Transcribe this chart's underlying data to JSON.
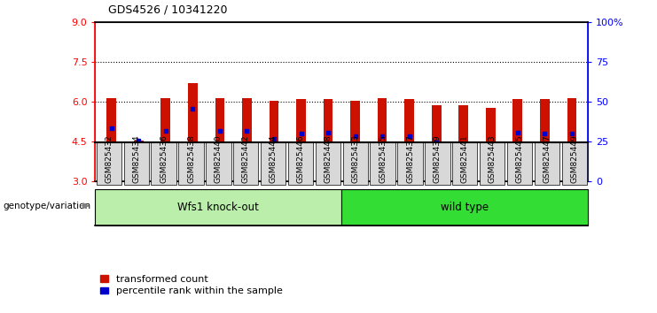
{
  "title": "GDS4526 / 10341220",
  "samples": [
    "GSM825432",
    "GSM825434",
    "GSM825436",
    "GSM825438",
    "GSM825440",
    "GSM825442",
    "GSM825444",
    "GSM825446",
    "GSM825448",
    "GSM825433",
    "GSM825435",
    "GSM825437",
    "GSM825439",
    "GSM825441",
    "GSM825443",
    "GSM825445",
    "GSM825447",
    "GSM825449"
  ],
  "bar_heights": [
    6.15,
    4.55,
    6.15,
    6.7,
    6.15,
    6.15,
    6.05,
    6.1,
    6.1,
    6.05,
    6.15,
    6.1,
    5.87,
    5.87,
    5.77,
    6.1,
    6.1,
    6.15
  ],
  "blue_dots": [
    5.0,
    4.55,
    4.9,
    5.75,
    4.9,
    4.9,
    4.6,
    4.8,
    4.85,
    4.72,
    4.72,
    4.72,
    4.47,
    4.42,
    4.38,
    4.85,
    4.82,
    4.82
  ],
  "group1_label": "Wfs1 knock-out",
  "group2_label": "wild type",
  "group1_count": 9,
  "group2_count": 9,
  "ymin": 3,
  "ymax": 9,
  "yticks": [
    3,
    4.5,
    6,
    7.5,
    9
  ],
  "right_yticks": [
    0,
    25,
    50,
    75,
    100
  ],
  "right_ytick_labels": [
    "0",
    "25",
    "50",
    "75",
    "100%"
  ],
  "bar_color": "#cc1100",
  "dot_color": "#0000cc",
  "group1_bg": "#bbeeaa",
  "group2_bg": "#33dd33",
  "tick_label_bg": "#d8d8d8",
  "legend_red_label": "transformed count",
  "legend_blue_label": "percentile rank within the sample",
  "xlabel_left": "genotype/variation"
}
